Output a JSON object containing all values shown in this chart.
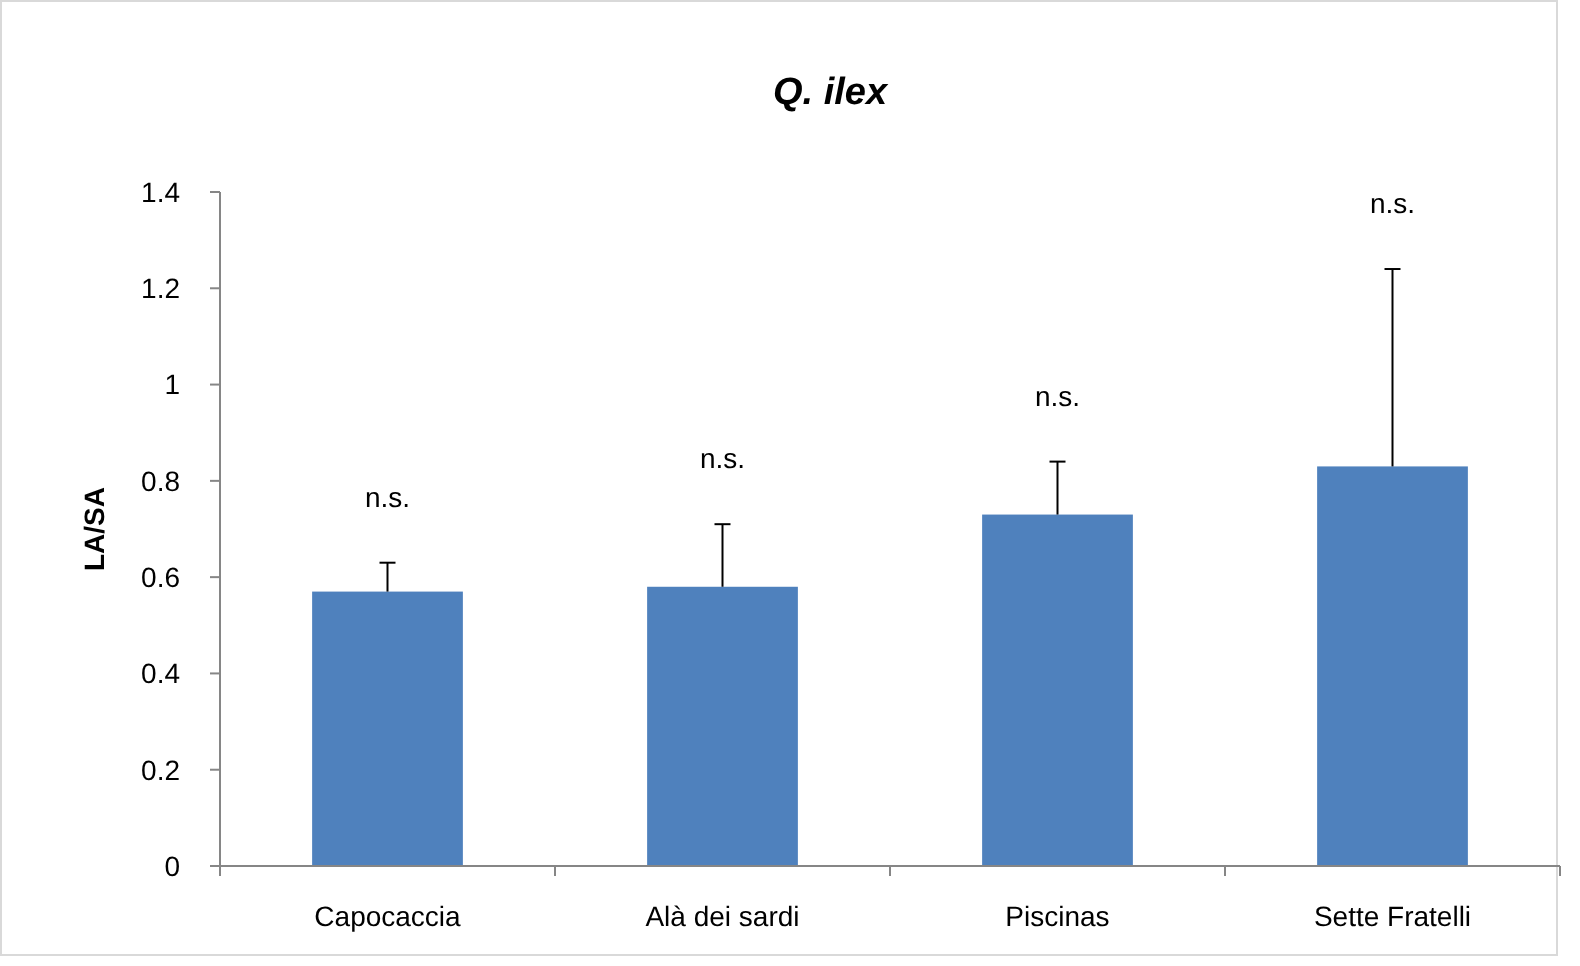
{
  "chart_data": {
    "type": "bar",
    "title": "Q. ilex",
    "ylabel": "LA/SA",
    "categories": [
      "Capocaccia",
      "Alà dei sardi",
      "Piscinas",
      "Sette Fratelli"
    ],
    "values": [
      0.57,
      0.58,
      0.73,
      0.83
    ],
    "errors": [
      [
        0.57,
        0.63
      ],
      [
        0.58,
        0.71
      ],
      [
        0.73,
        0.84
      ],
      [
        0.83,
        1.24
      ]
    ],
    "color": "#4f81bd",
    "ylim": [
      0,
      1.4
    ],
    "yticks": [
      0,
      0.2,
      0.4,
      0.6,
      0.8,
      1,
      1.2,
      1.4
    ],
    "grid": false,
    "annotations": [
      "n.s.",
      "n.s.",
      "n.s.",
      "n.s."
    ]
  }
}
